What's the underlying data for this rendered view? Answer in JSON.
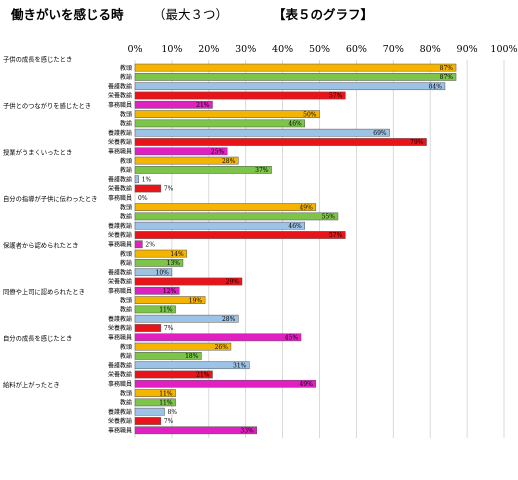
{
  "title": {
    "main": "働きがいを感じる時",
    "sub": "（最大３つ）",
    "tag": "【表５のグラフ】"
  },
  "colors": {
    "教頭": "#f5b400",
    "教諭": "#7cc44a",
    "養護教諭": "#9cc2e6",
    "栄養教諭": "#e8141a",
    "事務職員": "#e020c0",
    "grid": "#d0d0d0",
    "bar_border": "#555555"
  },
  "chart_data": {
    "type": "bar",
    "orientation": "horizontal",
    "xlim": [
      0,
      100
    ],
    "x_ticks": [
      "0%",
      "10%",
      "20%",
      "30%",
      "40%",
      "50%",
      "60%",
      "70%",
      "80%",
      "90%",
      "100%"
    ],
    "grid": true,
    "groups": [
      {
        "label": "子供の成長を感じたとき",
        "rows": [
          {
            "role": "教頭",
            "value": 87,
            "value_label": "87%"
          },
          {
            "role": "教諭",
            "value": 87,
            "value_label": "87%"
          },
          {
            "role": "養護教諭",
            "value": 84,
            "value_label": "84%"
          },
          {
            "role": "栄養教諭",
            "value": 57,
            "value_label": "57%"
          },
          {
            "role": "事務職員",
            "value": 21,
            "value_label": "21%"
          }
        ]
      },
      {
        "label": "子供とのつながりを感じたとき",
        "rows": [
          {
            "role": "教頭",
            "value": 50,
            "value_label": "50%"
          },
          {
            "role": "教諭",
            "value": 46,
            "value_label": "46%"
          },
          {
            "role": "養護教諭",
            "value": 69,
            "value_label": "69%"
          },
          {
            "role": "栄養教諭",
            "value": 79,
            "value_label": "79%"
          },
          {
            "role": "事務職員",
            "value": 25,
            "value_label": "25%"
          }
        ]
      },
      {
        "label": "授業がうまくいったとき",
        "rows": [
          {
            "role": "教頭",
            "value": 28,
            "value_label": "28%"
          },
          {
            "role": "教諭",
            "value": 37,
            "value_label": "37%"
          },
          {
            "role": "養護教諭",
            "value": 1,
            "value_label": "1%"
          },
          {
            "role": "栄養教諭",
            "value": 7,
            "value_label": "7%"
          },
          {
            "role": "事務職員",
            "value": 0,
            "value_label": "0%"
          }
        ]
      },
      {
        "label": "自分の指導が子供に伝わったとき",
        "rows": [
          {
            "role": "教頭",
            "value": 49,
            "value_label": "49%"
          },
          {
            "role": "教諭",
            "value": 55,
            "value_label": "55%"
          },
          {
            "role": "養護教諭",
            "value": 46,
            "value_label": "46%"
          },
          {
            "role": "栄養教諭",
            "value": 57,
            "value_label": "57%"
          },
          {
            "role": "事務職員",
            "value": 2,
            "value_label": "2%"
          }
        ]
      },
      {
        "label": "保護者から認められたとき",
        "rows": [
          {
            "role": "教頭",
            "value": 14,
            "value_label": "14%"
          },
          {
            "role": "教諭",
            "value": 13,
            "value_label": "13%"
          },
          {
            "role": "養護教諭",
            "value": 10,
            "value_label": "10%"
          },
          {
            "role": "栄養教諭",
            "value": 29,
            "value_label": "29%"
          },
          {
            "role": "事務職員",
            "value": 12,
            "value_label": "12%"
          }
        ]
      },
      {
        "label": "同僚や上司に認められたとき",
        "rows": [
          {
            "role": "教頭",
            "value": 19,
            "value_label": "19%"
          },
          {
            "role": "教諭",
            "value": 11,
            "value_label": "11%"
          },
          {
            "role": "養護教諭",
            "value": 28,
            "value_label": "28%"
          },
          {
            "role": "栄養教諭",
            "value": 7,
            "value_label": "7%"
          },
          {
            "role": "事務職員",
            "value": 45,
            "value_label": "45%"
          }
        ]
      },
      {
        "label": "自分の成長を感じたとき",
        "rows": [
          {
            "role": "教頭",
            "value": 26,
            "value_label": "26%"
          },
          {
            "role": "教諭",
            "value": 18,
            "value_label": "18%"
          },
          {
            "role": "養護教諭",
            "value": 31,
            "value_label": "31%"
          },
          {
            "role": "栄養教諭",
            "value": 21,
            "value_label": "21%"
          },
          {
            "role": "事務職員",
            "value": 49,
            "value_label": "49%"
          }
        ]
      },
      {
        "label": "給料が上がったとき",
        "rows": [
          {
            "role": "教頭",
            "value": 11,
            "value_label": "11%"
          },
          {
            "role": "教諭",
            "value": 11,
            "value_label": "11%"
          },
          {
            "role": "養護教諭",
            "value": 8,
            "value_label": "8%"
          },
          {
            "role": "栄養教諭",
            "value": 7,
            "value_label": "7%"
          },
          {
            "role": "事務職員",
            "value": 33,
            "value_label": "33%"
          }
        ]
      }
    ]
  }
}
